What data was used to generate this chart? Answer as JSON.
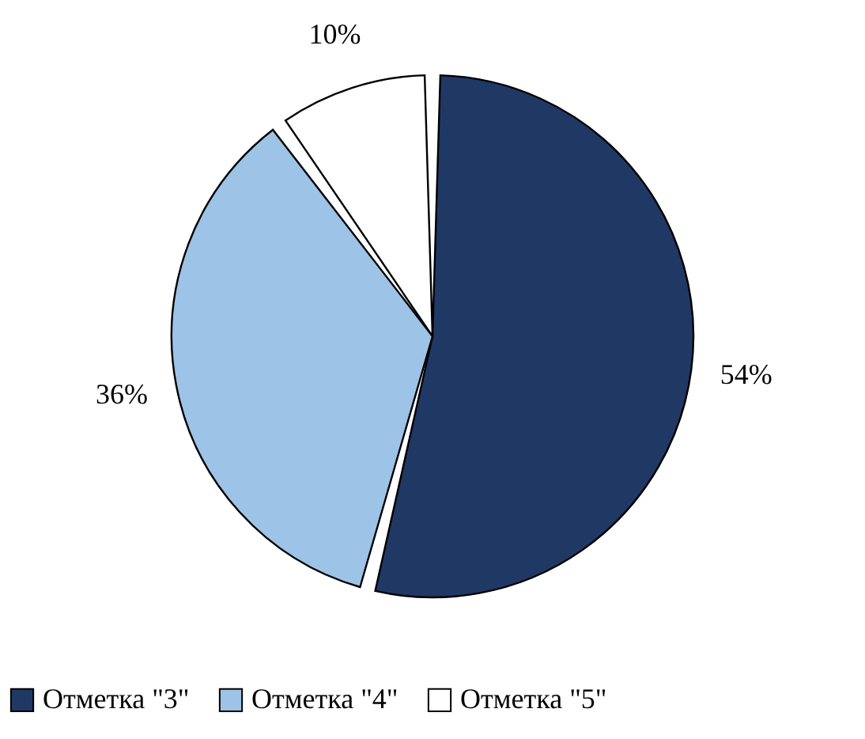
{
  "chart_data": {
    "type": "pie",
    "categories": [
      "Отметка \"3\"",
      "Отметка \"4\"",
      "Отметка \"5\""
    ],
    "values": [
      54,
      36,
      10
    ],
    "colors": [
      "#203864",
      "#9dc3e6",
      "#ffffff"
    ],
    "value_labels": [
      "54%",
      "36%",
      "10%"
    ],
    "legend": "bottom"
  }
}
